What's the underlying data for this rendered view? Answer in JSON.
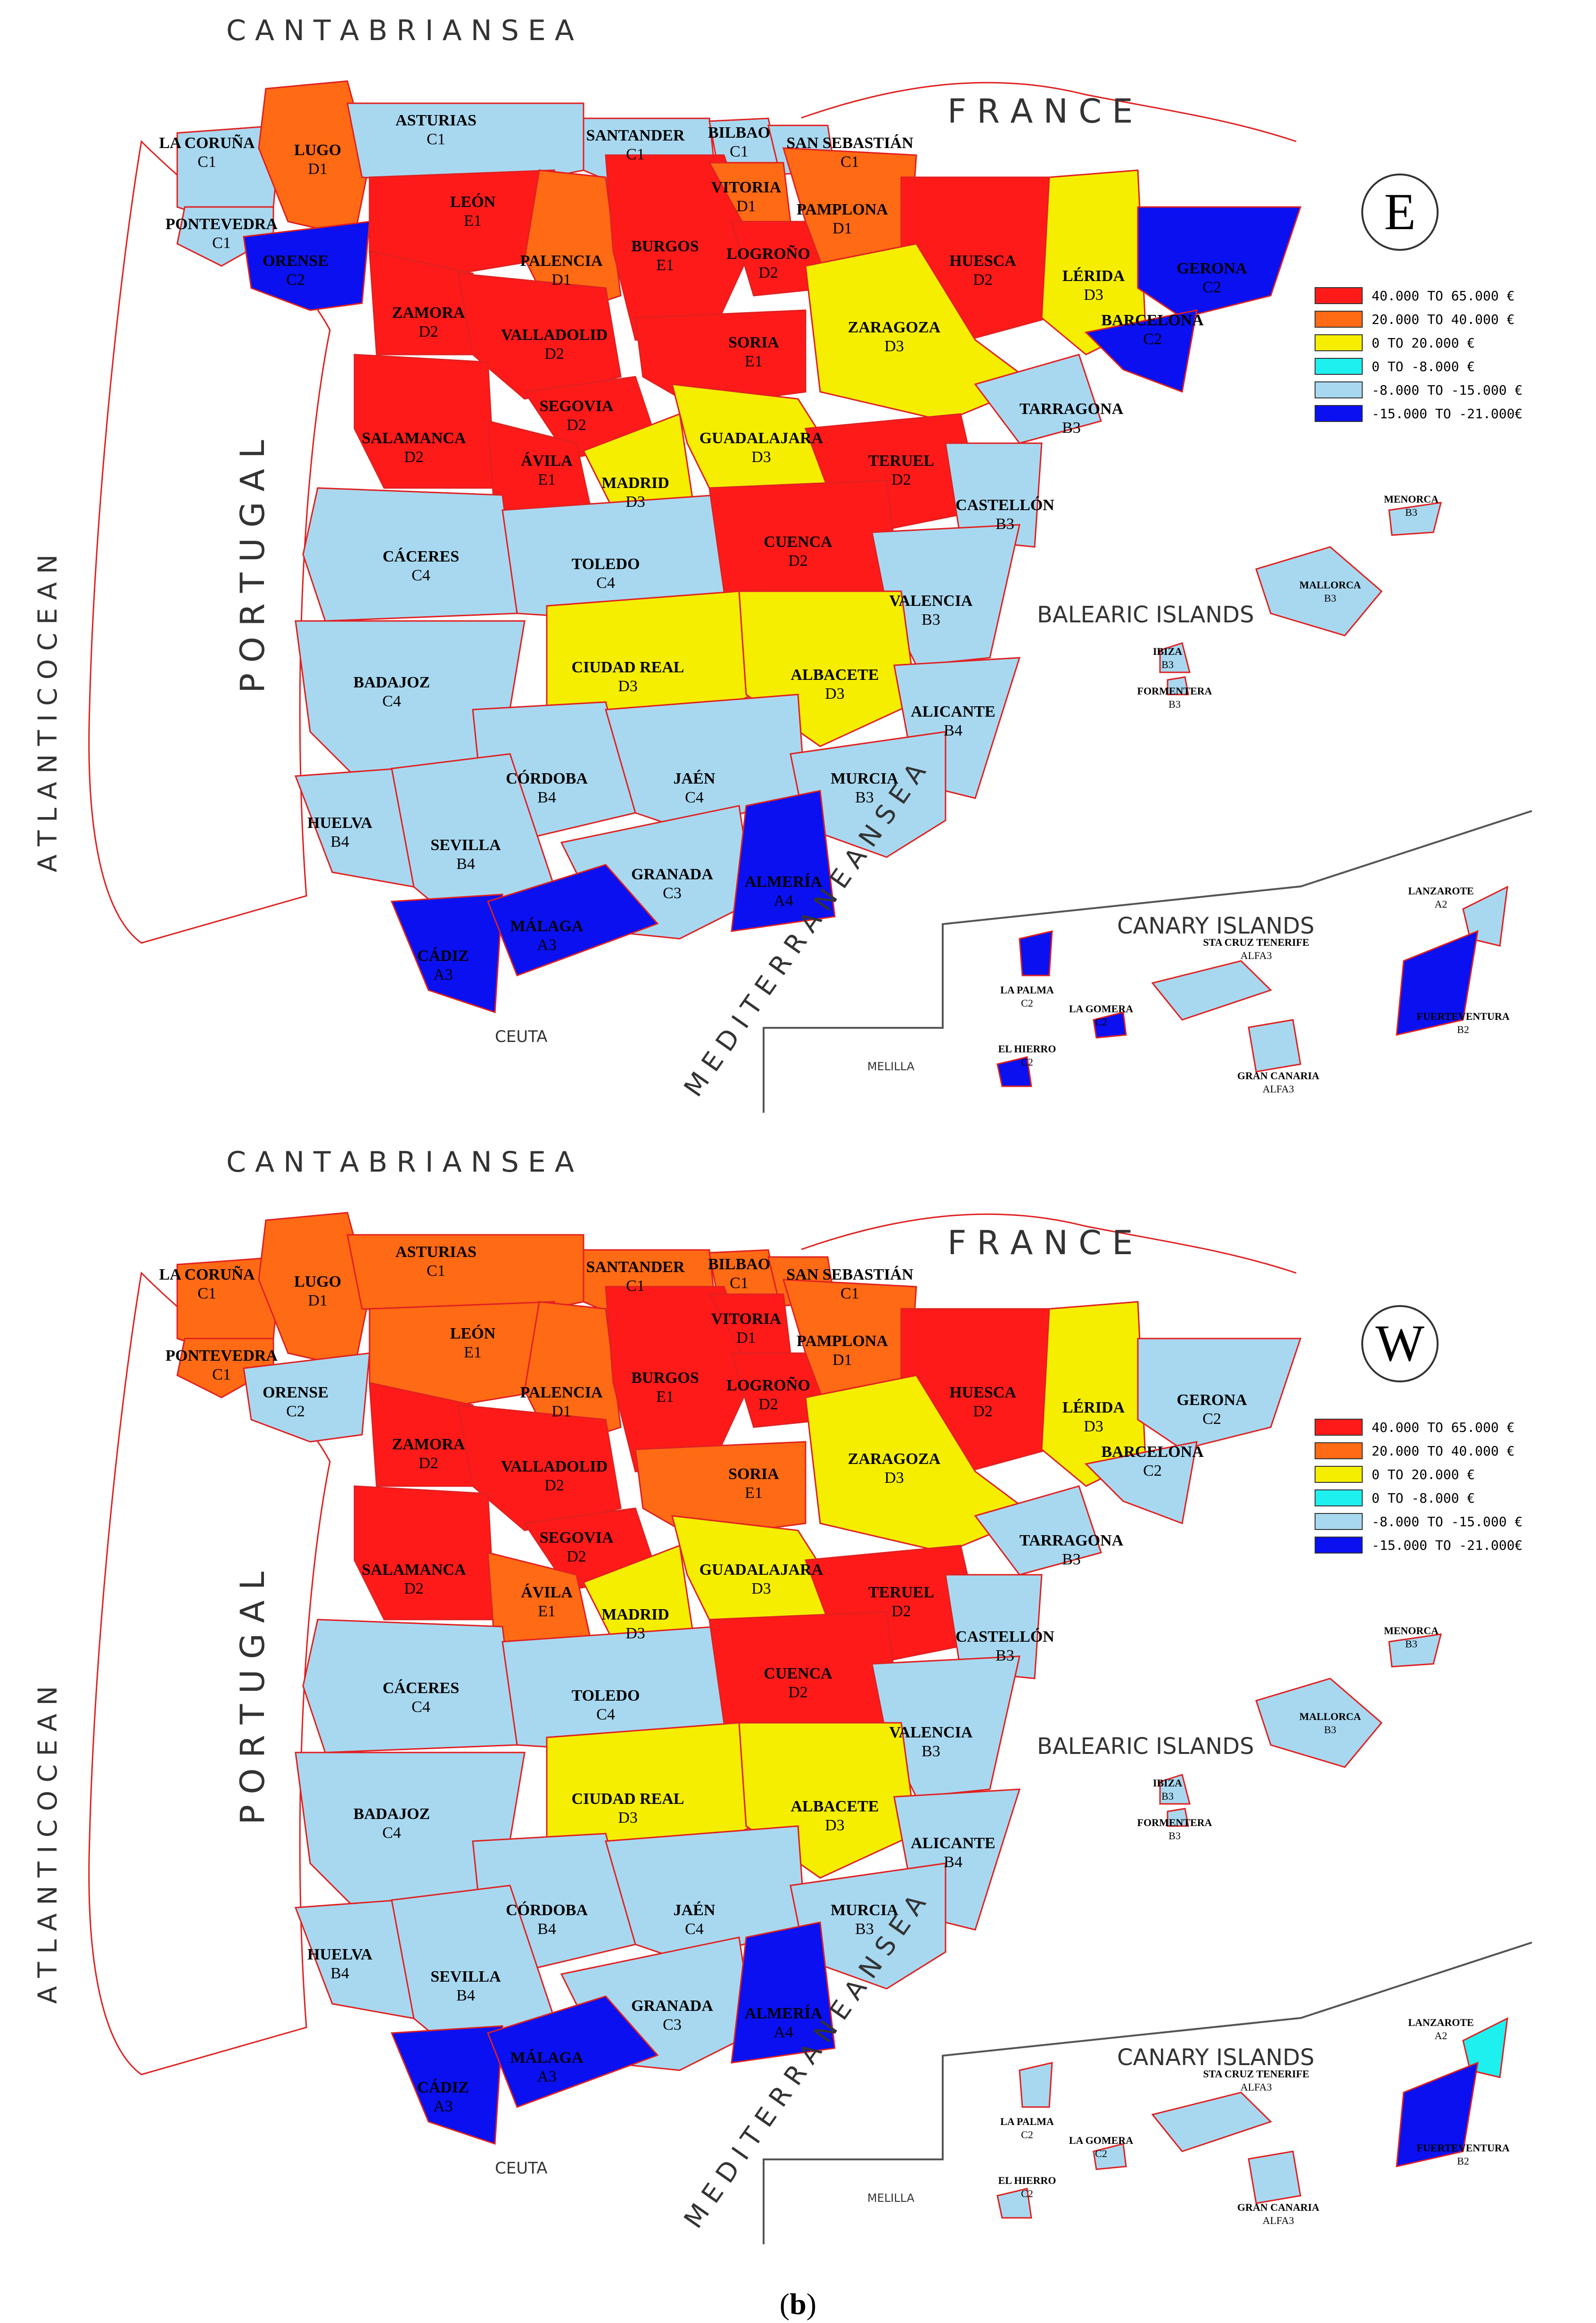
{
  "colors": {
    "red": "#ff1a1a",
    "orange": "#ff6a14",
    "yellow": "#f5ee00",
    "cyan": "#1ef0f0",
    "lightblue": "#a8d8f0",
    "blue": "#0a10f0",
    "coast": "#e02020"
  },
  "labels": {
    "cantabrian_sea": "C A N T A B R I A N   S E A",
    "france": "F R A N C E",
    "atlantic_ocean": "A T L A N T I C   O C E A N",
    "portugal": "P O R T U G A L",
    "mediterranean_sea": "M E D I T E R R A N E A N   S E A",
    "balearic_islands": "BALEARIC ISLANDS",
    "canary_islands": "CANARY  ISLANDS",
    "ceuta": "CEUTA",
    "melilla": "MELILLA"
  },
  "legend": [
    {
      "text": "40.000  TO  65.000 €",
      "color": "red"
    },
    {
      "text": "20.000  TO  40.000 €",
      "color": "orange"
    },
    {
      "text": "0  TO  20.000 €",
      "color": "yellow"
    },
    {
      "text": "0  TO  -8.000 €",
      "color": "cyan"
    },
    {
      "text": "-8.000  TO  -15.000 €",
      "color": "lightblue"
    },
    {
      "text": "-15.000  TO  -21.000€",
      "color": "blue"
    }
  ],
  "maps": [
    {
      "orientation": "E",
      "provinces": {
        "coruna": {
          "name": "LA CORUÑA",
          "code": "C1",
          "color": "lightblue"
        },
        "lugo": {
          "name": "LUGO",
          "code": "D1",
          "color": "orange"
        },
        "asturias": {
          "name": "ASTURIAS",
          "code": "C1",
          "color": "lightblue"
        },
        "santander": {
          "name": "SANTANDER",
          "code": "C1",
          "color": "lightblue"
        },
        "bilbao": {
          "name": "BILBAO",
          "code": "C1",
          "color": "lightblue"
        },
        "sansebastian": {
          "name": "SAN  SEBASTIÁN",
          "code": "C1",
          "color": "lightblue"
        },
        "pontevedra": {
          "name": "PONTEVEDRA",
          "code": "C1",
          "color": "lightblue"
        },
        "orense": {
          "name": "ORENSE",
          "code": "C2",
          "color": "blue"
        },
        "leon": {
          "name": "LEÓN",
          "code": "E1",
          "color": "red"
        },
        "palencia": {
          "name": "PALENCIA",
          "code": "D1",
          "color": "orange"
        },
        "burgos": {
          "name": "BURGOS",
          "code": "E1",
          "color": "red"
        },
        "vitoria": {
          "name": "VITORIA",
          "code": "D1",
          "color": "orange"
        },
        "logrono": {
          "name": "LOGROÑO",
          "code": "D2",
          "color": "red"
        },
        "pamplona": {
          "name": "PAMPLONA",
          "code": "D1",
          "color": "orange"
        },
        "huesca": {
          "name": "HUESCA",
          "code": "D2",
          "color": "red"
        },
        "lerida": {
          "name": "LÉRIDA",
          "code": "D3",
          "color": "yellow"
        },
        "gerona": {
          "name": "GERONA",
          "code": "C2",
          "color": "blue"
        },
        "zamora": {
          "name": "ZAMORA",
          "code": "D2",
          "color": "red"
        },
        "valladolid": {
          "name": "VALLADOLID",
          "code": "D2",
          "color": "red"
        },
        "soria": {
          "name": "SORIA",
          "code": "E1",
          "color": "red"
        },
        "zaragoza": {
          "name": "ZARAGOZA",
          "code": "D3",
          "color": "yellow"
        },
        "barcelona": {
          "name": "BARCELONA",
          "code": "C2",
          "color": "blue"
        },
        "salamanca": {
          "name": "SALAMANCA",
          "code": "D2",
          "color": "red"
        },
        "segovia": {
          "name": "SEGOVIA",
          "code": "D2",
          "color": "red"
        },
        "avila": {
          "name": "ÁVILA",
          "code": "E1",
          "color": "red"
        },
        "madrid": {
          "name": "MADRID",
          "code": "D3",
          "color": "yellow"
        },
        "guadalajara": {
          "name": "GUADALAJARA",
          "code": "D3",
          "color": "yellow"
        },
        "teruel": {
          "name": "TERUEL",
          "code": "D2",
          "color": "red"
        },
        "tarragona": {
          "name": "TARRAGONA",
          "code": "B3",
          "color": "lightblue"
        },
        "castellon": {
          "name": "CASTELLÓN",
          "code": "B3",
          "color": "lightblue"
        },
        "caceres": {
          "name": "CÁCERES",
          "code": "C4",
          "color": "lightblue"
        },
        "toledo": {
          "name": "TOLEDO",
          "code": "C4",
          "color": "lightblue"
        },
        "cuenca": {
          "name": "CUENCA",
          "code": "D2",
          "color": "red"
        },
        "valencia": {
          "name": "VALENCIA",
          "code": "B3",
          "color": "lightblue"
        },
        "ciudadreal": {
          "name": "CIUDAD  REAL",
          "code": "D3",
          "color": "yellow"
        },
        "albacete": {
          "name": "ALBACETE",
          "code": "D3",
          "color": "yellow"
        },
        "badajoz": {
          "name": "BADAJOZ",
          "code": "C4",
          "color": "lightblue"
        },
        "alicante": {
          "name": "ALICANTE",
          "code": "B4",
          "color": "lightblue"
        },
        "cordoba": {
          "name": "CÓRDOBA",
          "code": "B4",
          "color": "lightblue"
        },
        "jaen": {
          "name": "JAÉN",
          "code": "C4",
          "color": "lightblue"
        },
        "murcia": {
          "name": "MURCIA",
          "code": "B3",
          "color": "lightblue"
        },
        "huelva": {
          "name": "HUELVA",
          "code": "B4",
          "color": "lightblue"
        },
        "sevilla": {
          "name": "SEVILLA",
          "code": "B4",
          "color": "lightblue"
        },
        "granada": {
          "name": "GRANADA",
          "code": "C3",
          "color": "lightblue"
        },
        "almeria": {
          "name": "ALMERÍA",
          "code": "A4",
          "color": "blue"
        },
        "cadiz": {
          "name": "CÁDIZ",
          "code": "A3",
          "color": "blue"
        },
        "malaga": {
          "name": "MÁLAGA",
          "code": "A3",
          "color": "blue"
        },
        "menorca": {
          "name": "MENORCA",
          "code": "B3",
          "color": "lightblue"
        },
        "mallorca": {
          "name": "MALLORCA",
          "code": "B3",
          "color": "lightblue"
        },
        "ibiza": {
          "name": "IBIZA",
          "code": "B3",
          "color": "lightblue"
        },
        "formentera": {
          "name": "FORMENTERA",
          "code": "B3",
          "color": "lightblue"
        },
        "lanzarote": {
          "name": "LANZAROTE",
          "code": "A2",
          "color": "lightblue"
        },
        "fuerteventura": {
          "name": "FUERTEVENTURA",
          "code": "B2",
          "color": "blue"
        },
        "lapalma": {
          "name": "LA  PALMA",
          "code": "C2",
          "color": "blue"
        },
        "lagomera": {
          "name": "LA  GOMERA",
          "code": "C2",
          "color": "blue"
        },
        "tenerife": {
          "name": "STA  CRUZ  TENERIFE",
          "code": "ALFA3",
          "color": "lightblue"
        },
        "grancanaria": {
          "name": "GRAN  CANARIA",
          "code": "ALFA3",
          "color": "lightblue"
        },
        "elhierro": {
          "name": "EL  HIERRO",
          "code": "C2",
          "color": "blue"
        }
      }
    },
    {
      "orientation": "W",
      "provinces": {
        "coruna": {
          "name": "LA  CORUÑA",
          "code": "C1",
          "color": "orange"
        },
        "lugo": {
          "name": "LUGO",
          "code": "D1",
          "color": "orange"
        },
        "asturias": {
          "name": "ASTURIAS",
          "code": "C1",
          "color": "orange"
        },
        "santander": {
          "name": "SANTANDER",
          "code": "C1",
          "color": "orange"
        },
        "bilbao": {
          "name": "BILBAO",
          "code": "C1",
          "color": "orange"
        },
        "sansebastian": {
          "name": "SAN  SEBASTIÁN",
          "code": "C1",
          "color": "orange"
        },
        "pontevedra": {
          "name": "PONTEVEDRA",
          "code": "C1",
          "color": "orange"
        },
        "orense": {
          "name": "ORENSE",
          "code": "C2",
          "color": "lightblue"
        },
        "leon": {
          "name": "LEÓN",
          "code": "E1",
          "color": "orange"
        },
        "palencia": {
          "name": "PALENCIA",
          "code": "D1",
          "color": "orange"
        },
        "burgos": {
          "name": "BURGOS",
          "code": "E1",
          "color": "red"
        },
        "vitoria": {
          "name": "VITORIA",
          "code": "D1",
          "color": "red"
        },
        "logrono": {
          "name": "LOGROÑO",
          "code": "D2",
          "color": "red"
        },
        "pamplona": {
          "name": "PAMPLONA",
          "code": "D1",
          "color": "orange"
        },
        "huesca": {
          "name": "HUESCA",
          "code": "D2",
          "color": "red"
        },
        "lerida": {
          "name": "LÉRIDA",
          "code": "D3",
          "color": "yellow"
        },
        "gerona": {
          "name": "GERONA",
          "code": "C2",
          "color": "lightblue"
        },
        "zamora": {
          "name": "ZAMORA",
          "code": "D2",
          "color": "red"
        },
        "valladolid": {
          "name": "VALLADOLID",
          "code": "D2",
          "color": "red"
        },
        "soria": {
          "name": "SORIA",
          "code": "E1",
          "color": "orange"
        },
        "zaragoza": {
          "name": "ZARAGOZA",
          "code": "D3",
          "color": "yellow"
        },
        "barcelona": {
          "name": "BARCELONA",
          "code": "C2",
          "color": "lightblue"
        },
        "salamanca": {
          "name": "SALAMANCA",
          "code": "D2",
          "color": "red"
        },
        "segovia": {
          "name": "SEGOVIA",
          "code": "D2",
          "color": "red"
        },
        "avila": {
          "name": "ÁVILA",
          "code": "E1",
          "color": "orange"
        },
        "madrid": {
          "name": "MADRID",
          "code": "D3",
          "color": "yellow"
        },
        "guadalajara": {
          "name": "GUADALAJARA",
          "code": "D3",
          "color": "yellow"
        },
        "teruel": {
          "name": "TERUEL",
          "code": "D2",
          "color": "red"
        },
        "tarragona": {
          "name": "TARRAGONA",
          "code": "B3",
          "color": "lightblue"
        },
        "castellon": {
          "name": "CASTELLÓN",
          "code": "B3",
          "color": "lightblue"
        },
        "caceres": {
          "name": "CÁCERES",
          "code": "C4",
          "color": "lightblue"
        },
        "toledo": {
          "name": "TOLEDO",
          "code": "C4",
          "color": "lightblue"
        },
        "cuenca": {
          "name": "CUENCA",
          "code": "D2",
          "color": "red"
        },
        "valencia": {
          "name": "VALENCIA",
          "code": "B3",
          "color": "lightblue"
        },
        "ciudadreal": {
          "name": "CIUDAD  REAL",
          "code": "D3",
          "color": "yellow"
        },
        "albacete": {
          "name": "ALBACETE",
          "code": "D3",
          "color": "yellow"
        },
        "badajoz": {
          "name": "BADAJOZ",
          "code": "C4",
          "color": "lightblue"
        },
        "alicante": {
          "name": "ALICANTE",
          "code": "B4",
          "color": "lightblue"
        },
        "cordoba": {
          "name": "CÓRDOBA",
          "code": "B4",
          "color": "lightblue"
        },
        "jaen": {
          "name": "JAÉN",
          "code": "C4",
          "color": "lightblue"
        },
        "murcia": {
          "name": "MURCIA",
          "code": "B3",
          "color": "lightblue"
        },
        "huelva": {
          "name": "HUELVA",
          "code": "B4",
          "color": "lightblue"
        },
        "sevilla": {
          "name": "SEVILLA",
          "code": "B4",
          "color": "lightblue"
        },
        "granada": {
          "name": "GRANADA",
          "code": "C3",
          "color": "lightblue"
        },
        "almeria": {
          "name": "ALMERÍA",
          "code": "A4",
          "color": "blue"
        },
        "cadiz": {
          "name": "CÁDIZ",
          "code": "A3",
          "color": "blue"
        },
        "malaga": {
          "name": "MÁLAGA",
          "code": "A3",
          "color": "blue"
        },
        "menorca": {
          "name": "MENORCA",
          "code": "B3",
          "color": "lightblue"
        },
        "mallorca": {
          "name": "MALLORCA",
          "code": "B3",
          "color": "lightblue"
        },
        "ibiza": {
          "name": "IBIZA",
          "code": "B3",
          "color": "lightblue"
        },
        "formentera": {
          "name": "FORMENTERA",
          "code": "B3",
          "color": "lightblue"
        },
        "lanzarote": {
          "name": "LANZAROTE",
          "code": "A2",
          "color": "cyan"
        },
        "fuerteventura": {
          "name": "FUERTEVENTURA",
          "code": "B2",
          "color": "blue"
        },
        "lapalma": {
          "name": "LA  PALMA",
          "code": "C2",
          "color": "lightblue"
        },
        "lagomera": {
          "name": "LA  GOMERA",
          "code": "C2",
          "color": "lightblue"
        },
        "tenerife": {
          "name": "STA  CRUZ  TENERIFE",
          "code": "ALFA3",
          "color": "lightblue"
        },
        "grancanaria": {
          "name": "GRAN  CANARIA",
          "code": "ALFA3",
          "color": "lightblue"
        },
        "elhierro": {
          "name": "EL  HIERRO",
          "code": "C2",
          "color": "lightblue"
        }
      }
    }
  ],
  "caption": {
    "prefix": "(",
    "letter": "b",
    "suffix": ")"
  }
}
